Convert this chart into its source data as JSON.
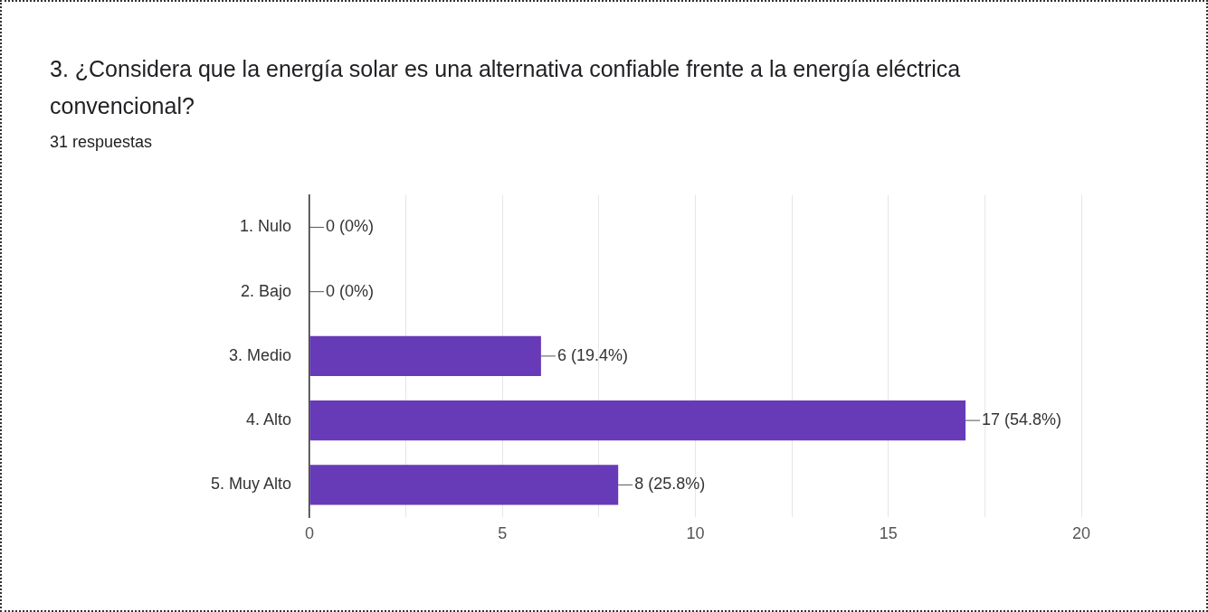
{
  "chart_data": {
    "type": "bar",
    "orientation": "horizontal",
    "title": "3. ¿Considera que la energía solar es una alternativa confiable frente a la energía eléctrica convencional?",
    "subtitle": "31 respuestas",
    "categories": [
      "1. Nulo",
      "2. Bajo",
      "3. Medio",
      "4. Alto",
      "5. Muy Alto"
    ],
    "values": [
      0,
      0,
      6,
      17,
      8
    ],
    "value_labels": [
      "0 (0%)",
      "0 (0%)",
      "6 (19.4%)",
      "17 (54.8%)",
      "8 (25.8%)"
    ],
    "color": "#673ab7",
    "xlim": [
      0,
      20
    ],
    "xticks": [
      0,
      {
        "value": 2.5,
        "label": null
      },
      5,
      {
        "value": 7.5,
        "label": null
      },
      10,
      {
        "value": 12.5,
        "label": null
      },
      15,
      {
        "value": 17.5,
        "label": null
      },
      20
    ],
    "grid": "x",
    "legend": false
  }
}
